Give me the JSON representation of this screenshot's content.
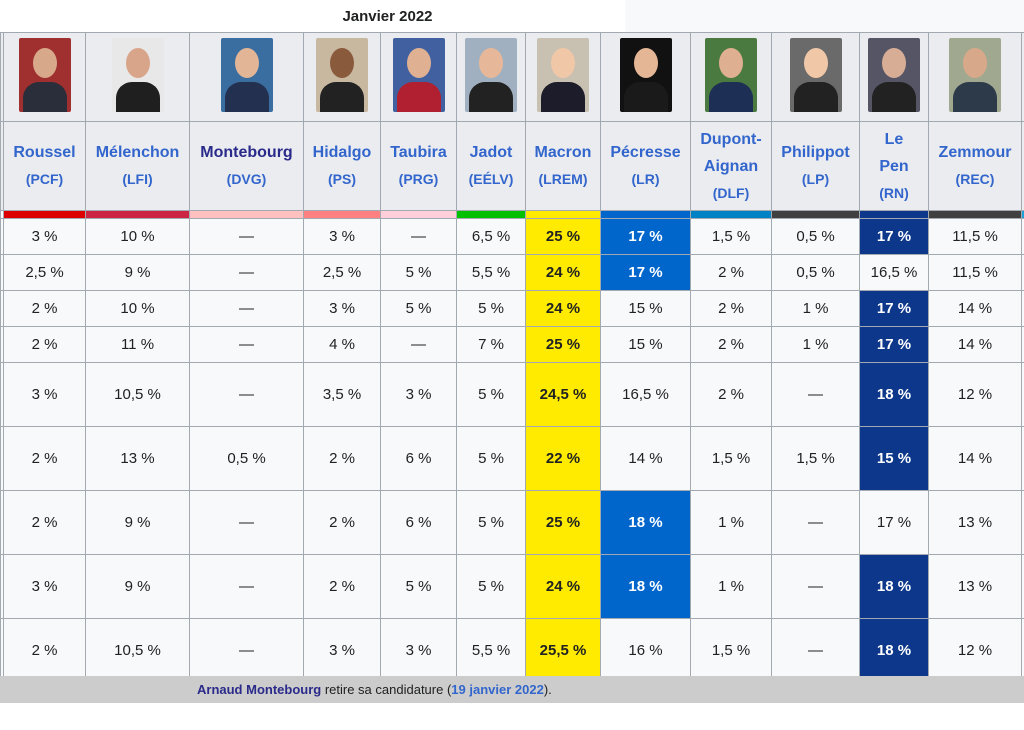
{
  "title": "Janvier 2022",
  "candidates": [
    {
      "name": "",
      "party": "",
      "color": "#ffffff",
      "partial": true
    },
    {
      "name": "Roussel",
      "party": "(PCF)",
      "color": "#dd0000"
    },
    {
      "name": "Mélenchon",
      "party": "(LFI)",
      "color": "#cc2443"
    },
    {
      "name": "Montebourg",
      "party": "(DVG)",
      "color": "#ffc0c0",
      "visited": true
    },
    {
      "name": "Hidalgo",
      "party": "(PS)",
      "color": "#ff8080"
    },
    {
      "name": "Taubira",
      "party": "(PRG)",
      "color": "#ffd0da"
    },
    {
      "name": "Jadot",
      "party": "(EÉLV)",
      "color": "#00c000"
    },
    {
      "name": "Macron",
      "party": "(LREM)",
      "color": "#ffeb00"
    },
    {
      "name": "Pécresse",
      "party": "(LR)",
      "color": "#0066cc"
    },
    {
      "name": "Dupont-Aignan",
      "party": "(DLF)",
      "color": "#0082c4"
    },
    {
      "name": "Philippot",
      "party": "(LP)",
      "color": "#404040"
    },
    {
      "name": "Le Pen",
      "party": "(RN)",
      "color": "#0d378a"
    },
    {
      "name": "Zemmour",
      "party": "(REC)",
      "color": "#404040"
    },
    {
      "name": "",
      "party": "",
      "color": "#1ba1d6",
      "partial": true
    }
  ],
  "rows": [
    [
      "3 %",
      "10 %",
      "—",
      "3 %",
      "—",
      "6,5 %",
      "25 %",
      "17 %",
      "1,5 %",
      "0,5 %",
      "17 %",
      "11,5 %"
    ],
    [
      "2,5 %",
      "9 %",
      "—",
      "2,5 %",
      "5 %",
      "5,5 %",
      "24 %",
      "17 %",
      "2 %",
      "0,5 %",
      "16,5 %",
      "11,5 %"
    ],
    [
      "2 %",
      "10 %",
      "—",
      "3 %",
      "5 %",
      "5 %",
      "24 %",
      "15 %",
      "2 %",
      "1 %",
      "17 %",
      "14 %"
    ],
    [
      "2 %",
      "11 %",
      "—",
      "4 %",
      "—",
      "7 %",
      "25 %",
      "15 %",
      "2 %",
      "1 %",
      "17 %",
      "14 %"
    ],
    [
      "3 %",
      "10,5 %",
      "—",
      "3,5 %",
      "3 %",
      "5 %",
      "24,5 %",
      "16,5 %",
      "2 %",
      "—",
      "18 %",
      "12 %"
    ],
    [
      "2 %",
      "13 %",
      "0,5 %",
      "2 %",
      "6 %",
      "5 %",
      "22 %",
      "14 %",
      "1,5 %",
      "1,5 %",
      "15 %",
      "14 %"
    ],
    [
      "2 %",
      "9 %",
      "—",
      "2 %",
      "6 %",
      "5 %",
      "25 %",
      "18 %",
      "1 %",
      "—",
      "17 %",
      "13 %"
    ],
    [
      "3 %",
      "9 %",
      "—",
      "2 %",
      "5 %",
      "5 %",
      "24 %",
      "18 %",
      "1 %",
      "—",
      "18 %",
      "13 %"
    ],
    [
      "2 %",
      "10,5 %",
      "—",
      "3 %",
      "3 %",
      "5,5 %",
      "25,5 %",
      "16 %",
      "1,5 %",
      "—",
      "18 %",
      "12 %"
    ]
  ],
  "highlights": {
    "lr_leading_rows": [
      0,
      1,
      6,
      7
    ],
    "rn_leading_rows": [
      0,
      2,
      3,
      4,
      5,
      7,
      8
    ]
  },
  "footer": {
    "link1": "Arnaud Montebourg",
    "text1": " retire sa candidature (",
    "link2": "19 janvier 2022",
    "text2": ")."
  }
}
